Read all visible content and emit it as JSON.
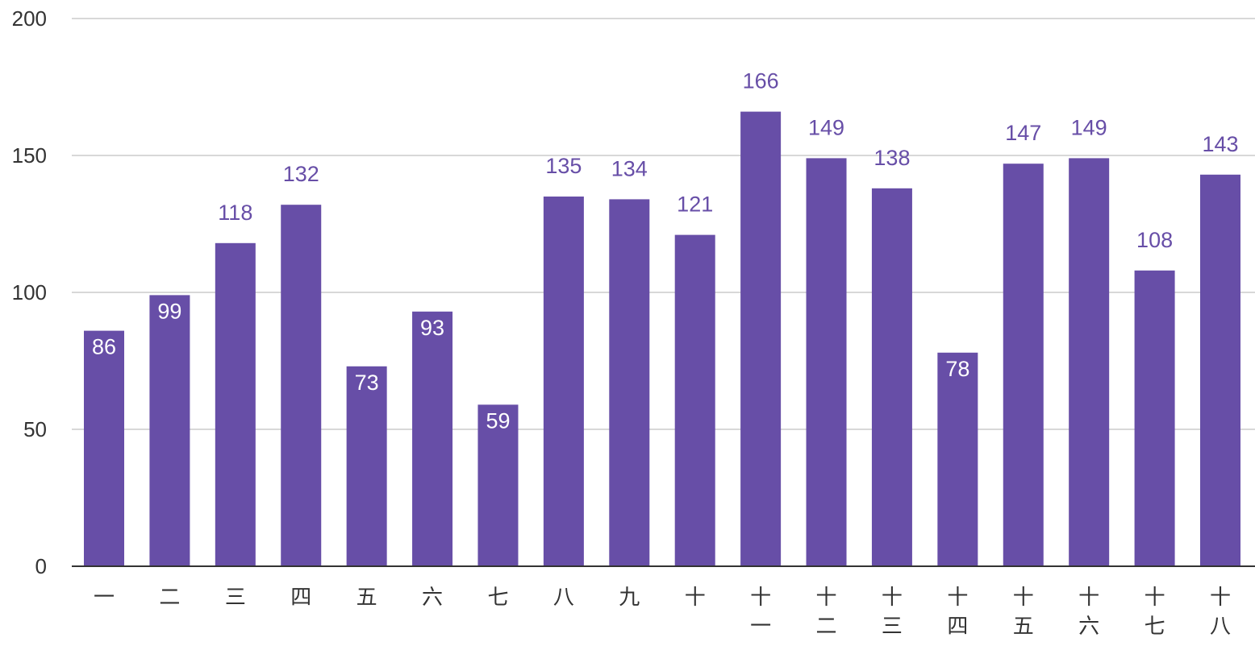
{
  "chart_data": {
    "type": "bar",
    "title": "",
    "xlabel": "",
    "ylabel": "",
    "categories": [
      "一",
      "二",
      "三",
      "四",
      "五",
      "六",
      "七",
      "八",
      "九",
      "十",
      "十一",
      "十二",
      "十三",
      "十四",
      "十五",
      "十六",
      "十七",
      "十八"
    ],
    "values": [
      86,
      99,
      118,
      132,
      73,
      93,
      59,
      135,
      134,
      121,
      166,
      149,
      138,
      78,
      147,
      149,
      108,
      143
    ],
    "ylim": [
      0,
      200
    ],
    "yticks": [
      0,
      50,
      100,
      150,
      200
    ],
    "grid": true,
    "legend": "none",
    "colors": {
      "bar": "#674ea7",
      "label_outside": "#674ea7",
      "label_inside": "#ffffff",
      "grid": "#cccccc",
      "axis": "#333333",
      "tick_text": "#333333"
    }
  }
}
